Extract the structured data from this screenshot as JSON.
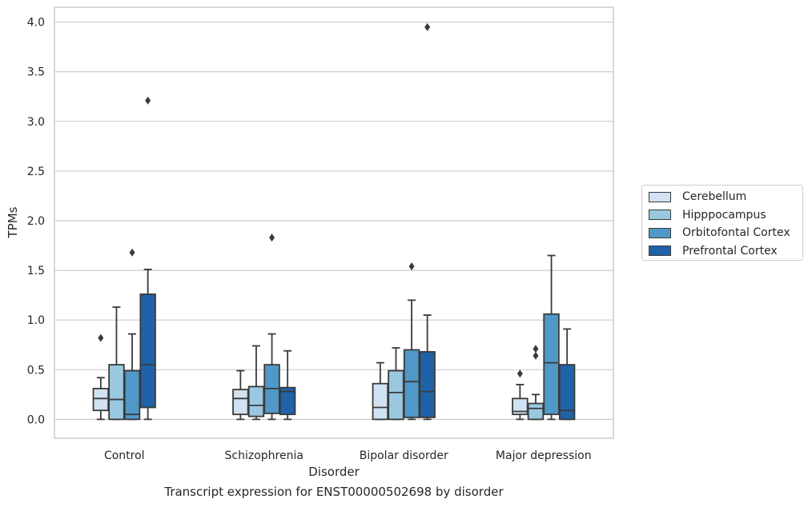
{
  "chart_data": {
    "type": "box",
    "xlabel": "Disorder",
    "ylabel": "TPMs",
    "ylim": [
      -0.19,
      4.15
    ],
    "yticks": [
      "0.0",
      "0.5",
      "1.0",
      "1.5",
      "2.0",
      "2.5",
      "3.0",
      "3.5",
      "4.0"
    ],
    "grid": true,
    "legend_position": "right, outside plot",
    "categories": [
      "Control",
      "Schizophrenia",
      "Bipolar disorder",
      "Major depression"
    ],
    "series": [
      {
        "name": "Cerebellum",
        "color": "#d1e2f2",
        "boxes": [
          {
            "whislo": 0.0,
            "q1": 0.09,
            "med": 0.21,
            "q3": 0.31,
            "whishi": 0.42,
            "fliers": [
              0.82
            ]
          },
          {
            "whislo": 0.0,
            "q1": 0.05,
            "med": 0.21,
            "q3": 0.3,
            "whishi": 0.49,
            "fliers": []
          },
          {
            "whislo": 0.0,
            "q1": 0.0,
            "med": 0.12,
            "q3": 0.36,
            "whishi": 0.57,
            "fliers": []
          },
          {
            "whislo": 0.0,
            "q1": 0.05,
            "med": 0.08,
            "q3": 0.21,
            "whishi": 0.35,
            "fliers": [
              0.46
            ]
          }
        ]
      },
      {
        "name": "Hipppocampus",
        "color": "#9ac8e0",
        "boxes": [
          {
            "whislo": 0.0,
            "q1": 0.0,
            "med": 0.2,
            "q3": 0.55,
            "whishi": 1.13,
            "fliers": []
          },
          {
            "whislo": 0.0,
            "q1": 0.03,
            "med": 0.14,
            "q3": 0.33,
            "whishi": 0.74,
            "fliers": []
          },
          {
            "whislo": 0.0,
            "q1": 0.0,
            "med": 0.27,
            "q3": 0.49,
            "whishi": 0.72,
            "fliers": []
          },
          {
            "whislo": 0.0,
            "q1": 0.0,
            "med": 0.11,
            "q3": 0.16,
            "whishi": 0.25,
            "fliers": [
              0.64,
              0.71
            ]
          }
        ]
      },
      {
        "name": "Orbitofontal Cortex",
        "color": "#5098c7",
        "boxes": [
          {
            "whislo": 0.0,
            "q1": 0.0,
            "med": 0.05,
            "q3": 0.49,
            "whishi": 0.86,
            "fliers": [
              1.68
            ]
          },
          {
            "whislo": 0.0,
            "q1": 0.06,
            "med": 0.31,
            "q3": 0.55,
            "whishi": 0.86,
            "fliers": [
              1.83
            ]
          },
          {
            "whislo": 0.0,
            "q1": 0.02,
            "med": 0.38,
            "q3": 0.7,
            "whishi": 1.2,
            "fliers": [
              1.54
            ]
          },
          {
            "whislo": 0.0,
            "q1": 0.05,
            "med": 0.57,
            "q3": 1.06,
            "whishi": 1.65,
            "fliers": []
          }
        ]
      },
      {
        "name": "Prefrontal Cortex",
        "color": "#1f62a8",
        "boxes": [
          {
            "whislo": 0.0,
            "q1": 0.12,
            "med": 0.55,
            "q3": 1.26,
            "whishi": 1.51,
            "fliers": [
              3.21
            ]
          },
          {
            "whislo": 0.0,
            "q1": 0.05,
            "med": 0.28,
            "q3": 0.32,
            "whishi": 0.69,
            "fliers": []
          },
          {
            "whislo": 0.0,
            "q1": 0.02,
            "med": 0.28,
            "q3": 0.68,
            "whishi": 1.05,
            "fliers": [
              3.95
            ]
          },
          {
            "whislo": 0.0,
            "q1": 0.0,
            "med": 0.09,
            "q3": 0.55,
            "whishi": 0.91,
            "fliers": []
          }
        ]
      }
    ]
  },
  "caption": "Transcript expression for ENST00000502698 by disorder"
}
